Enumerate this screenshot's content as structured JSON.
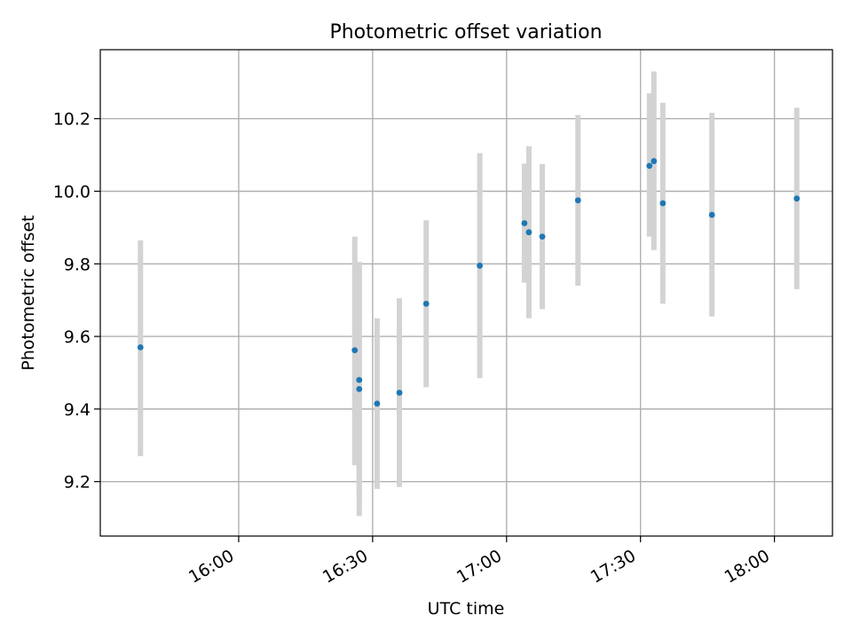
{
  "chart_data": {
    "type": "scatter",
    "title": "Photometric offset variation",
    "xlabel": "UTC time",
    "ylabel": "Photometric offset",
    "x_ticks": [
      "16:00",
      "16:30",
      "17:00",
      "17:30",
      "18:00"
    ],
    "y_ticks": [
      9.2,
      9.4,
      9.6,
      9.8,
      10.0,
      10.2
    ],
    "xlim": [
      "15:29",
      "18:13"
    ],
    "ylim": [
      9.05,
      10.39
    ],
    "grid": true,
    "colors": {
      "marker": "#1f77b4",
      "errorbar": "#d3d3d3",
      "grid": "#b0b0b0"
    },
    "points": [
      {
        "x": "15:38",
        "y": 9.57,
        "ylow": 9.27,
        "yhigh": 9.865
      },
      {
        "x": "16:26",
        "y": 9.562,
        "ylow": 9.245,
        "yhigh": 9.875
      },
      {
        "x": "16:27",
        "y": 9.48,
        "ylow": 9.155,
        "yhigh": 9.805
      },
      {
        "x": "16:27",
        "y": 9.455,
        "ylow": 9.105,
        "yhigh": 9.805
      },
      {
        "x": "16:31",
        "y": 9.415,
        "ylow": 9.18,
        "yhigh": 9.65
      },
      {
        "x": "16:36",
        "y": 9.445,
        "ylow": 9.185,
        "yhigh": 9.705
      },
      {
        "x": "16:42",
        "y": 9.69,
        "ylow": 9.46,
        "yhigh": 9.92
      },
      {
        "x": "16:54",
        "y": 9.795,
        "ylow": 9.485,
        "yhigh": 10.105
      },
      {
        "x": "17:04",
        "y": 9.912,
        "ylow": 9.748,
        "yhigh": 10.076
      },
      {
        "x": "17:05",
        "y": 9.887,
        "ylow": 9.65,
        "yhigh": 10.124
      },
      {
        "x": "17:08",
        "y": 9.875,
        "ylow": 9.675,
        "yhigh": 10.075
      },
      {
        "x": "17:16",
        "y": 9.975,
        "ylow": 9.74,
        "yhigh": 10.21
      },
      {
        "x": "17:32",
        "y": 10.07,
        "ylow": 9.875,
        "yhigh": 10.27
      },
      {
        "x": "17:33",
        "y": 10.083,
        "ylow": 9.838,
        "yhigh": 10.33
      },
      {
        "x": "17:35",
        "y": 9.967,
        "ylow": 9.69,
        "yhigh": 10.244
      },
      {
        "x": "17:46",
        "y": 9.935,
        "ylow": 9.655,
        "yhigh": 10.216
      },
      {
        "x": "18:05",
        "y": 9.98,
        "ylow": 9.73,
        "yhigh": 10.23
      }
    ]
  }
}
